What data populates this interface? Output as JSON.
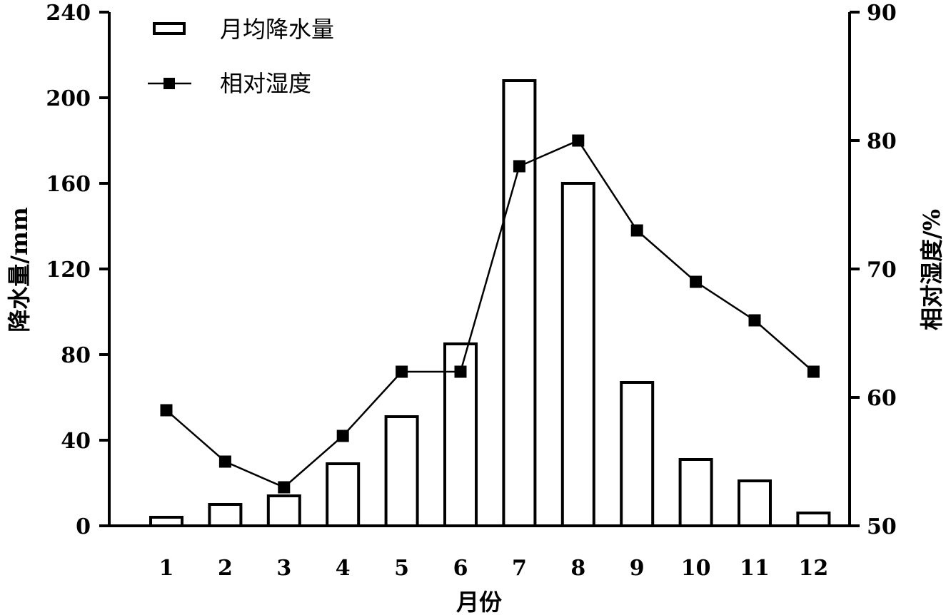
{
  "chart_data": {
    "type": "bar",
    "categories": [
      "1",
      "2",
      "3",
      "4",
      "5",
      "6",
      "7",
      "8",
      "9",
      "10",
      "11",
      "12"
    ],
    "xlabel": "月份",
    "series": [
      {
        "name": "月均降水量",
        "type": "bar",
        "axis": "left",
        "values": [
          4,
          10,
          14,
          29,
          51,
          85,
          208,
          160,
          67,
          31,
          21,
          6
        ]
      },
      {
        "name": "相对湿度",
        "type": "line",
        "axis": "right",
        "marker": "square",
        "values": [
          59,
          55,
          53,
          57,
          62,
          62,
          78,
          80,
          73,
          69,
          66,
          62
        ]
      }
    ],
    "y_left": {
      "label": "降水量/mm",
      "range": [
        0,
        240
      ],
      "ticks": [
        "0",
        "40",
        "80",
        "120",
        "160",
        "200",
        "240"
      ]
    },
    "y_right": {
      "label": "相对湿度/%",
      "range": [
        50,
        90
      ],
      "ticks": [
        "50",
        "60",
        "70",
        "80",
        "90"
      ]
    },
    "legend_position": "top-left",
    "grid": false
  }
}
